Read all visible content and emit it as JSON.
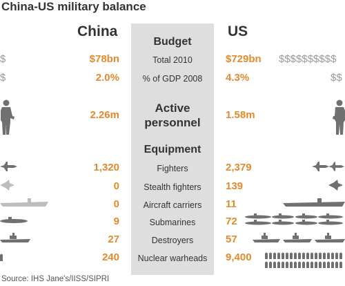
{
  "title": "China-US military balance",
  "headers": {
    "china": "China",
    "us": "US"
  },
  "sections": {
    "budget": "Budget",
    "active_line1": "Active",
    "active_line2": "personnel",
    "equipment": "Equipment"
  },
  "rows": [
    {
      "label": "Total 2010",
      "china": "$78bn",
      "us": "$729bn"
    },
    {
      "label": "% of GDP 2008",
      "china": "2.0%",
      "us": "4.3%"
    },
    {
      "label": "",
      "china": "2.26m",
      "us": "1.58m"
    },
    {
      "label": "Fighters",
      "china": "1,320",
      "us": "2,379"
    },
    {
      "label": "Stealth fighters",
      "china": "0",
      "us": "139"
    },
    {
      "label": "Aircraft carriers",
      "china": "0",
      "us": "11"
    },
    {
      "label": "Submarines",
      "china": "9",
      "us": "72"
    },
    {
      "label": "Destroyers",
      "china": "27",
      "us": "57"
    },
    {
      "label": "Nuclear warheads",
      "china": "240",
      "us": "9,400"
    }
  ],
  "icons": {
    "dollar_glyph": "$",
    "us_budget_glyphs": "$$$$$$$$$$",
    "us_gdp_glyphs": "$$"
  },
  "colors": {
    "accent": "#e58a2c",
    "icon_dark": "#707070",
    "icon_light": "#bdbdbd",
    "middle_band": "#dedede"
  },
  "source": "Source: IHS Jane's/IISS/SIPRI"
}
